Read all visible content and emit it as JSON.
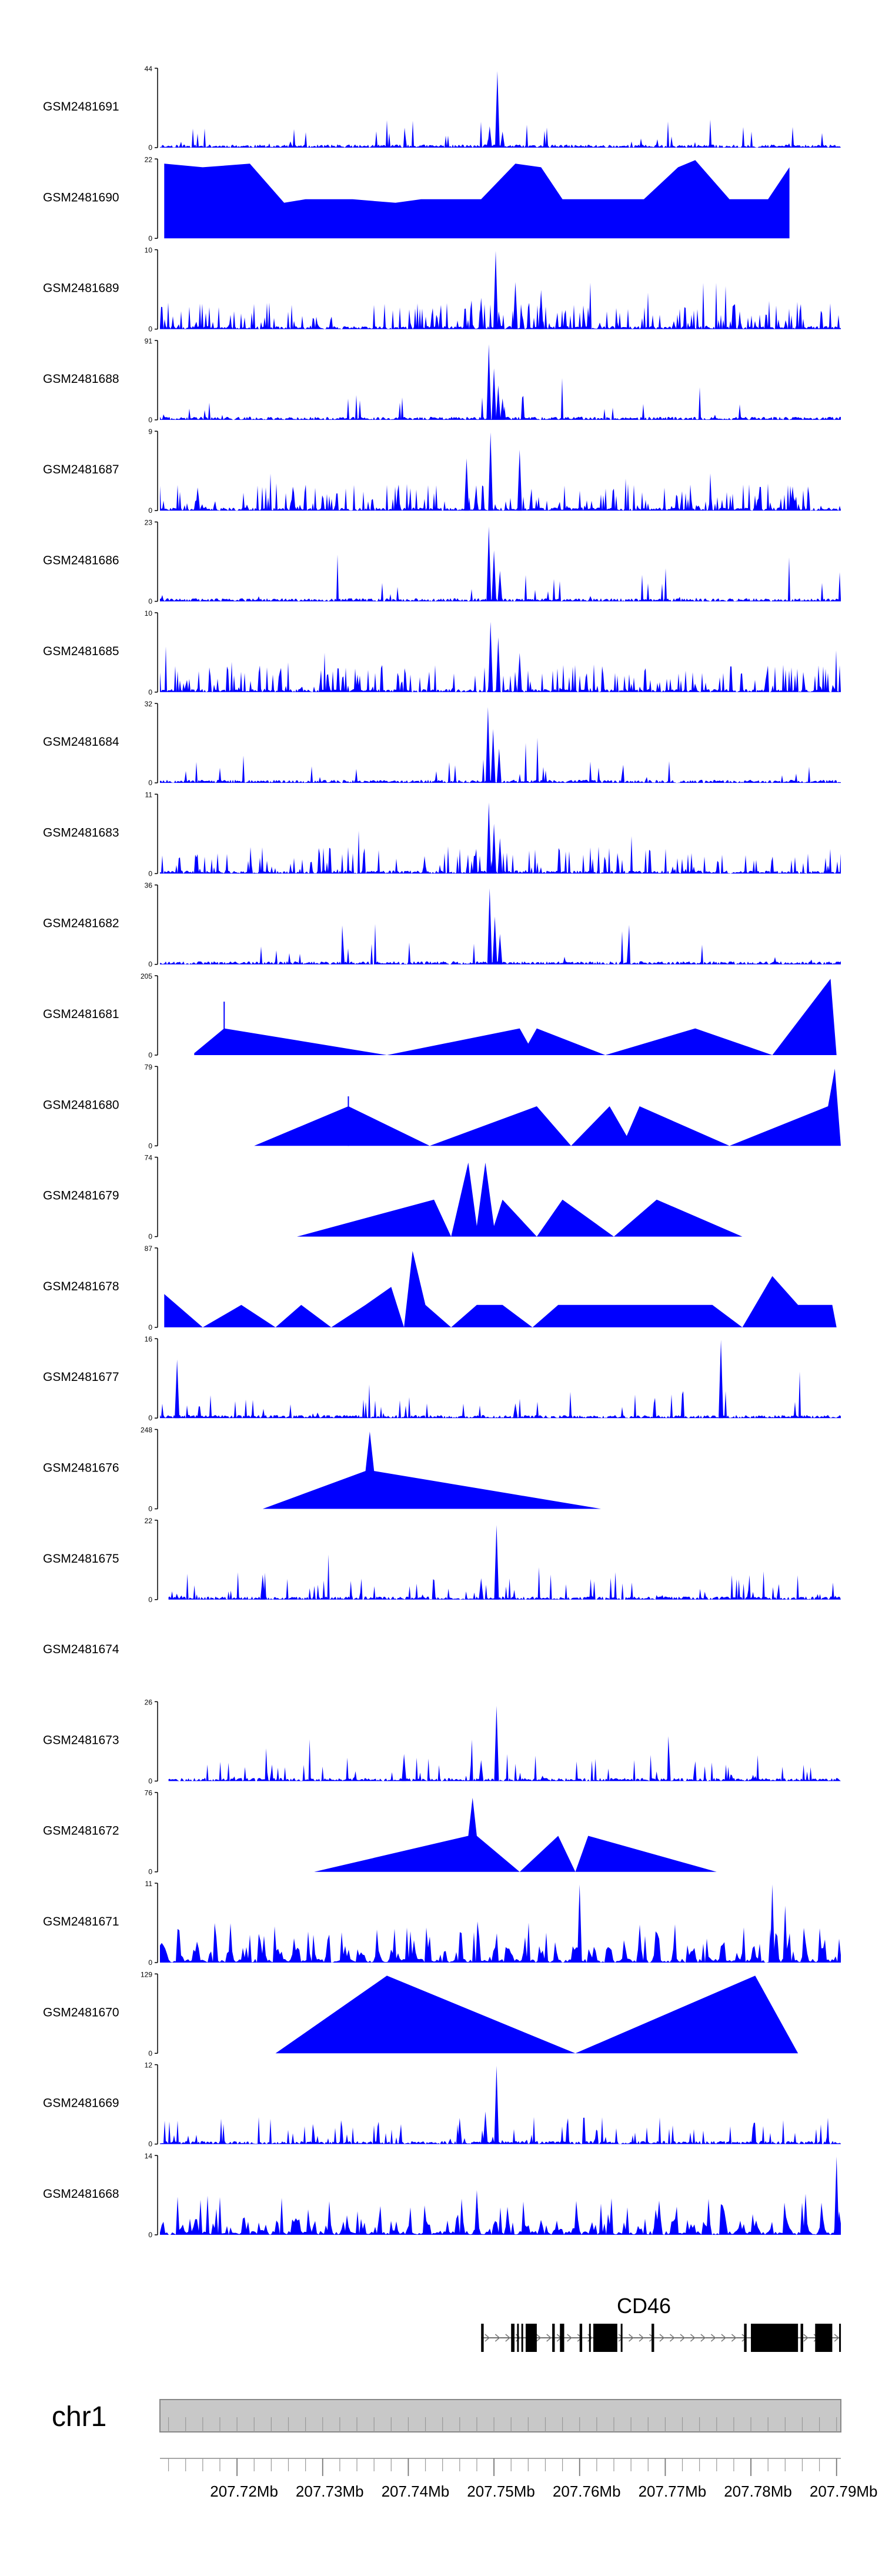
{
  "chart_data": {
    "type": "area",
    "title": "",
    "fill_color": "#0000ff",
    "genomic_region": {
      "chromosome": "chr1",
      "start_mb": 207.711,
      "end_mb": 207.7905
    },
    "tracks": [
      {
        "name": "GSM2481691",
        "ymax": "44",
        "ymin": "0",
        "style": "dense",
        "peaks": [
          [
            207.7504,
            43
          ],
          [
            207.7495,
            12
          ],
          [
            207.751,
            9
          ]
        ],
        "level": 0.08,
        "seed": 11,
        "range": [
          207.711,
          207.7905
        ]
      },
      {
        "name": "GSM2481690",
        "ymax": "22",
        "ymin": "0",
        "style": "triangles",
        "peaks": [
          [
            207.7115,
            21
          ],
          [
            207.716,
            20
          ],
          [
            207.7215,
            21
          ],
          [
            207.7255,
            10
          ],
          [
            207.728,
            11
          ],
          [
            207.7335,
            11
          ],
          [
            207.7385,
            10
          ],
          [
            207.7415,
            11
          ],
          [
            207.7445,
            11
          ],
          [
            207.7485,
            11
          ],
          [
            207.7525,
            21
          ],
          [
            207.7555,
            20
          ],
          [
            207.758,
            11
          ],
          [
            207.7675,
            11
          ],
          [
            207.7715,
            20
          ],
          [
            207.7735,
            22
          ],
          [
            207.7775,
            11
          ],
          [
            207.782,
            11
          ],
          [
            207.7845,
            20
          ]
        ],
        "seed": 21,
        "range": [
          207.711,
          207.7875
        ]
      },
      {
        "name": "GSM2481689",
        "ymax": "10",
        "ymin": "0",
        "style": "dense",
        "peaks": [
          [
            207.7502,
            10
          ],
          [
            207.7485,
            4
          ],
          [
            207.7525,
            6
          ],
          [
            207.7555,
            5
          ]
        ],
        "level": 0.28,
        "seed": 31,
        "range": [
          207.711,
          207.7905
        ]
      },
      {
        "name": "GSM2481688",
        "ymax": "91",
        "ymin": "0",
        "style": "dense",
        "peaks": [
          [
            207.7494,
            88
          ],
          [
            207.75,
            60
          ],
          [
            207.7505,
            40
          ],
          [
            207.751,
            25
          ]
        ],
        "level": 0.05,
        "seed": 41,
        "range": [
          207.711,
          207.7905
        ]
      },
      {
        "name": "GSM2481687",
        "ymax": "9",
        "ymin": "0",
        "style": "dense",
        "peaks": [
          [
            207.7496,
            9
          ],
          [
            207.753,
            7
          ],
          [
            207.7468,
            6
          ]
        ],
        "level": 0.35,
        "seed": 51,
        "range": [
          207.711,
          207.7905
        ]
      },
      {
        "name": "GSM2481686",
        "ymax": "23",
        "ymin": "0",
        "style": "dense",
        "peaks": [
          [
            207.7494,
            22
          ],
          [
            207.75,
            15
          ],
          [
            207.7507,
            9
          ]
        ],
        "level": 0.05,
        "seed": 61,
        "range": [
          207.711,
          207.7905
        ]
      },
      {
        "name": "GSM2481685",
        "ymax": "10",
        "ymin": "0",
        "style": "dense",
        "peaks": [
          [
            207.7496,
            9
          ],
          [
            207.7505,
            7
          ],
          [
            207.753,
            5
          ]
        ],
        "level": 0.3,
        "seed": 71,
        "range": [
          207.711,
          207.7905
        ]
      },
      {
        "name": "GSM2481684",
        "ymax": "32",
        "ymin": "0",
        "style": "dense",
        "peaks": [
          [
            207.7493,
            31
          ],
          [
            207.7499,
            22
          ],
          [
            207.7506,
            14
          ]
        ],
        "level": 0.05,
        "seed": 81,
        "range": [
          207.711,
          207.7905
        ]
      },
      {
        "name": "GSM2481683",
        "ymax": "11",
        "ymin": "0",
        "style": "dense",
        "peaks": [
          [
            207.7494,
            10
          ],
          [
            207.75,
            7
          ],
          [
            207.7507,
            5
          ]
        ],
        "level": 0.2,
        "seed": 91,
        "range": [
          207.711,
          207.7905
        ]
      },
      {
        "name": "GSM2481682",
        "ymax": "36",
        "ymin": "0",
        "style": "dense",
        "peaks": [
          [
            207.7495,
            35
          ],
          [
            207.7501,
            22
          ],
          [
            207.7507,
            14
          ]
        ],
        "level": 0.04,
        "seed": 101,
        "range": [
          207.711,
          207.7905
        ]
      },
      {
        "name": "GSM2481681",
        "ymax": "205",
        "ymin": "0",
        "style": "triangles",
        "peaks": [
          [
            207.715,
            5
          ],
          [
            207.7185,
            70
          ],
          [
            207.7375,
            0
          ],
          [
            207.753,
            70
          ],
          [
            207.754,
            30
          ],
          [
            207.755,
            70
          ],
          [
            207.763,
            0
          ],
          [
            207.7735,
            70
          ],
          [
            207.7825,
            0
          ],
          [
            207.7893,
            200
          ],
          [
            207.79,
            0
          ]
        ],
        "spikes": [
          [
            207.7185,
            140
          ]
        ],
        "seed": 111,
        "range": [
          207.715,
          207.79
        ]
      },
      {
        "name": "GSM2481680",
        "ymax": "79",
        "ymin": "0",
        "style": "triangles",
        "peaks": [
          [
            207.722,
            0
          ],
          [
            207.733,
            40
          ],
          [
            207.7425,
            0
          ],
          [
            207.755,
            40
          ],
          [
            207.759,
            0
          ],
          [
            207.7635,
            40
          ],
          [
            207.7655,
            10
          ],
          [
            207.767,
            40
          ],
          [
            207.7775,
            0
          ],
          [
            207.789,
            40
          ],
          [
            207.7898,
            78
          ],
          [
            207.7905,
            0
          ]
        ],
        "spikes": [
          [
            207.733,
            50
          ]
        ],
        "seed": 121,
        "range": [
          207.722,
          207.7905
        ]
      },
      {
        "name": "GSM2481679",
        "ymax": "74",
        "ymin": "0",
        "style": "triangles",
        "peaks": [
          [
            207.727,
            0
          ],
          [
            207.743,
            35
          ],
          [
            207.745,
            0
          ],
          [
            207.747,
            70
          ],
          [
            207.748,
            10
          ],
          [
            207.749,
            70
          ],
          [
            207.75,
            10
          ],
          [
            207.751,
            35
          ],
          [
            207.755,
            0
          ],
          [
            207.758,
            35
          ],
          [
            207.764,
            0
          ],
          [
            207.769,
            35
          ],
          [
            207.779,
            0
          ]
        ],
        "seed": 131,
        "range": [
          207.727,
          207.779
        ]
      },
      {
        "name": "GSM2481678",
        "ymax": "87",
        "ymin": "0",
        "style": "triangles",
        "peaks": [
          [
            207.7115,
            37
          ],
          [
            207.716,
            0
          ],
          [
            207.7205,
            25
          ],
          [
            207.7245,
            0
          ],
          [
            207.7275,
            25
          ],
          [
            207.731,
            0
          ],
          [
            207.735,
            25
          ],
          [
            207.738,
            45
          ],
          [
            207.7395,
            0
          ],
          [
            207.7405,
            85
          ],
          [
            207.742,
            25
          ],
          [
            207.745,
            0
          ],
          [
            207.748,
            25
          ],
          [
            207.751,
            25
          ],
          [
            207.7545,
            0
          ],
          [
            207.7575,
            25
          ],
          [
            207.761,
            25
          ],
          [
            207.764,
            25
          ],
          [
            207.767,
            25
          ],
          [
            207.771,
            25
          ],
          [
            207.7755,
            25
          ],
          [
            207.779,
            0
          ],
          [
            207.7825,
            57
          ],
          [
            207.7855,
            25
          ],
          [
            207.7895,
            25
          ],
          [
            207.79,
            0
          ]
        ],
        "seed": 141,
        "range": [
          207.711,
          207.79
        ]
      },
      {
        "name": "GSM2481677",
        "ymax": "16",
        "ymin": "0",
        "style": "dense",
        "peaks": [
          [
            207.713,
            12
          ],
          [
            207.7765,
            16
          ],
          [
            207.7525,
            3
          ]
        ],
        "level": 0.06,
        "seed": 151,
        "range": [
          207.711,
          207.7905
        ]
      },
      {
        "name": "GSM2481676",
        "ymax": "248",
        "ymin": "0",
        "style": "triangles",
        "peaks": [
          [
            207.723,
            0
          ],
          [
            207.735,
            120
          ],
          [
            207.7355,
            245
          ],
          [
            207.736,
            120
          ],
          [
            207.7625,
            0
          ]
        ],
        "seed": 161,
        "range": [
          207.723,
          207.7625
        ]
      },
      {
        "name": "GSM2481675",
        "ymax": "22",
        "ymin": "0",
        "style": "dense",
        "peaks": [
          [
            207.7503,
            21
          ],
          [
            207.7485,
            6
          ],
          [
            207.723,
            7
          ]
        ],
        "level": 0.12,
        "seed": 171,
        "range": [
          207.712,
          207.7905
        ]
      },
      {
        "name": "GSM2481674",
        "ymax": "",
        "ymin": "",
        "style": "empty",
        "peaks": [],
        "seed": 181,
        "range": [
          207.711,
          207.7905
        ]
      },
      {
        "name": "GSM2481673",
        "ymax": "26",
        "ymin": "0",
        "style": "dense",
        "peaks": [
          [
            207.7503,
            25
          ],
          [
            207.7485,
            7
          ],
          [
            207.7395,
            9
          ]
        ],
        "level": 0.1,
        "seed": 191,
        "range": [
          207.712,
          207.7905
        ]
      },
      {
        "name": "GSM2481672",
        "ymax": "76",
        "ymin": "0",
        "style": "triangles",
        "peaks": [
          [
            207.729,
            0
          ],
          [
            207.747,
            35
          ],
          [
            207.7475,
            72
          ],
          [
            207.748,
            35
          ],
          [
            207.753,
            0
          ],
          [
            207.7575,
            35
          ],
          [
            207.7595,
            0
          ],
          [
            207.761,
            35
          ],
          [
            207.776,
            0
          ]
        ],
        "seed": 201,
        "range": [
          207.729,
          207.776
        ]
      },
      {
        "name": "GSM2481671",
        "ymax": "11",
        "ymin": "0",
        "style": "triangles-dense",
        "peaks": [
          [
            207.76,
            11
          ],
          [
            207.7825,
            11
          ],
          [
            207.784,
            8
          ]
        ],
        "level": 0.45,
        "seed": 211,
        "range": [
          207.711,
          207.7905
        ]
      },
      {
        "name": "GSM2481670",
        "ymax": "129",
        "ymin": "0",
        "style": "triangles",
        "peaks": [
          [
            207.7245,
            0
          ],
          [
            207.7375,
            128
          ],
          [
            207.7595,
            0
          ],
          [
            207.7805,
            128
          ],
          [
            207.7855,
            0
          ]
        ],
        "seed": 221,
        "range": [
          207.7245,
          207.7855
        ]
      },
      {
        "name": "GSM2481669",
        "ymax": "12",
        "ymin": "0",
        "style": "dense",
        "peaks": [
          [
            207.7503,
            12
          ],
          [
            207.749,
            5
          ],
          [
            207.746,
            4
          ]
        ],
        "level": 0.15,
        "seed": 231,
        "range": [
          207.711,
          207.7905
        ]
      },
      {
        "name": "GSM2481668",
        "ymax": "14",
        "ymin": "0",
        "style": "triangles-dense",
        "peaks": [
          [
            207.79,
            14
          ],
          [
            207.748,
            8
          ]
        ],
        "level": 0.3,
        "seed": 241,
        "range": [
          207.711,
          207.7905
        ]
      }
    ],
    "gene": {
      "name": "CD46",
      "strand": "+",
      "span_mb": [
        207.7485,
        207.7905
      ],
      "exons_mb": [
        [
          207.7485,
          207.7488
        ],
        [
          207.752,
          207.7524
        ],
        [
          207.7527,
          207.7529
        ],
        [
          207.7532,
          207.7534
        ],
        [
          207.7537,
          207.755
        ],
        [
          207.7568,
          207.7571
        ],
        [
          207.7577,
          207.7582
        ],
        [
          207.76,
          207.7603
        ],
        [
          207.7611,
          207.7613
        ],
        [
          207.7616,
          207.7644
        ],
        [
          207.7648,
          207.765
        ],
        [
          207.7684,
          207.7687
        ],
        [
          207.7792,
          207.7795
        ],
        [
          207.78,
          207.7855
        ],
        [
          207.7858,
          207.7861
        ],
        [
          207.7875,
          207.7895
        ],
        [
          207.7903,
          207.7905
        ]
      ]
    },
    "chromosome_label": "chr1",
    "axis": {
      "min_mb": 207.711,
      "max_mb": 207.7905,
      "major_ticks": [
        207.72,
        207.73,
        207.74,
        207.75,
        207.76,
        207.77,
        207.78,
        207.79
      ],
      "major_tick_labels": [
        "207.72Mb",
        "207.73Mb",
        "207.74Mb",
        "207.75Mb",
        "207.76Mb",
        "207.77Mb",
        "207.78Mb",
        "207.79Mb"
      ],
      "minor_step_mb": 0.002
    }
  }
}
